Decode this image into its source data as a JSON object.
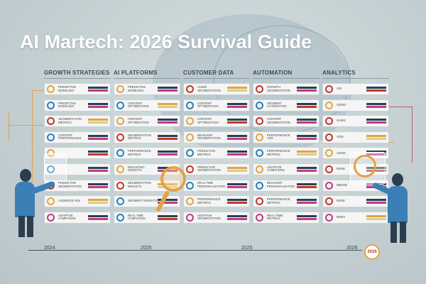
{
  "title": "AI Martech: 2026 Survival Guide",
  "columns": [
    {
      "title": "Growth Strategies",
      "items": [
        {
          "label": "Predictive Modeling",
          "ring": "#e3a343"
        },
        {
          "label": "Predictive Modeling",
          "ring": "#2b7fb5"
        },
        {
          "label": "Segmentation Metrics",
          "ring": "#c0382b"
        },
        {
          "label": "Content Performance",
          "ring": "#2b7fb5"
        },
        {
          "label": "",
          "ring": "#e3a343"
        },
        {
          "label": "",
          "ring": "#2b7fb5"
        },
        {
          "label": "Predictive Segmentation",
          "ring": "#c0382b"
        },
        {
          "label": "Audience Ads",
          "ring": "#e3a343"
        },
        {
          "label": "Adaptive Campaigns",
          "ring": "#c2378a"
        }
      ]
    },
    {
      "title": "AI Platforms",
      "items": [
        {
          "label": "Predictive Modeling",
          "ring": "#e3a343"
        },
        {
          "label": "Content Optimization",
          "ring": "#2b7fb5"
        },
        {
          "label": "Content Optimization",
          "ring": "#e3a343"
        },
        {
          "label": "Segmentation Metrics",
          "ring": "#c0382b"
        },
        {
          "label": "Performance Metrics",
          "ring": "#2b7fb5"
        },
        {
          "label": "Resulting Insights",
          "ring": "#e3a343"
        },
        {
          "label": "Segmentation Results",
          "ring": "#c0382b"
        },
        {
          "label": "Segment Insights",
          "ring": "#2b7fb5"
        },
        {
          "label": "Real Time Campaigns",
          "ring": "#2b7fb5"
        }
      ]
    },
    {
      "title": "Customer Data",
      "items": [
        {
          "label": "Audio Segmentation",
          "ring": "#c0382b"
        },
        {
          "label": "Content Optimization",
          "ring": "#2b7fb5"
        },
        {
          "label": "Content Optimization",
          "ring": "#e3a343"
        },
        {
          "label": "Behavior Segmentation",
          "ring": "#e3a343"
        },
        {
          "label": "Predictive Metrics",
          "ring": "#2b7fb5"
        },
        {
          "label": "Predictive Segmentation",
          "ring": "#c0382b"
        },
        {
          "label": "Real-Time Personalization",
          "ring": "#2b7fb5"
        },
        {
          "label": "Performance Metrics",
          "ring": "#e3a343"
        },
        {
          "label": "Adaptive Segmentation",
          "ring": "#c2378a"
        }
      ]
    },
    {
      "title": "Automation",
      "items": [
        {
          "label": "Growth Segmentation",
          "ring": "#c0382b"
        },
        {
          "label": "Segment Automation",
          "ring": "#2b7fb5"
        },
        {
          "label": "Content Segmentation",
          "ring": "#c0382b"
        },
        {
          "label": "Performance Ads",
          "ring": "#e3a343"
        },
        {
          "label": "Performance Metrics",
          "ring": "#2b7fb5"
        },
        {
          "label": "Adaptive Campaigns",
          "ring": "#e3a343"
        },
        {
          "label": "Behavior Personalization",
          "ring": "#2b7fb5"
        },
        {
          "label": "Performance Metrics",
          "ring": "#c0382b"
        },
        {
          "label": "Real-Time Metrics",
          "ring": "#c2378a"
        }
      ]
    },
    {
      "title": "Analytics",
      "items": [
        {
          "label": "ADI",
          "ring": "#c0382b"
        },
        {
          "label": "ADDIO",
          "ring": "#e3a343"
        },
        {
          "label": "SAIDS",
          "ring": "#c0382b"
        },
        {
          "label": "ADIS",
          "ring": "#c0382b"
        },
        {
          "label": "ADDIS",
          "ring": "#e3a343"
        },
        {
          "label": "MADE",
          "ring": "#c0382b"
        },
        {
          "label": "MBCDE",
          "ring": "#c2378a"
        },
        {
          "label": "MADE",
          "ring": "#c0382b"
        },
        {
          "label": "MDES",
          "ring": "#c2378a"
        }
      ]
    }
  ],
  "timeline": {
    "years": [
      "2024",
      "2025",
      "2025",
      "2026"
    ]
  },
  "badge": "2026",
  "colors": {
    "orange": "#e3a343",
    "blue": "#2b7fb5",
    "red": "#c0382b",
    "magenta": "#c2378a",
    "navy": "#2b3e50"
  }
}
